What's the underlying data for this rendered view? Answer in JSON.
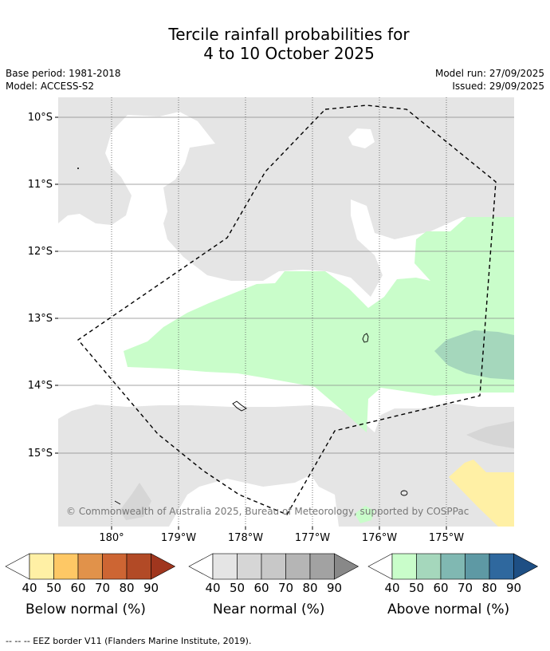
{
  "title": {
    "line1": "Tercile rainfall probabilities for",
    "line2": "4 to 10 October 2025"
  },
  "meta": {
    "base_period": "Base period: 1981-2018",
    "model": "Model: ACCESS-S2",
    "model_run": "Model run: 27/09/2025",
    "issued": "Issued: 29/09/2025"
  },
  "map": {
    "lat_labels": [
      "10°S",
      "11°S",
      "12°S",
      "13°S",
      "14°S",
      "15°S"
    ],
    "lon_labels": [
      "180°",
      "179°W",
      "178°W",
      "177°W",
      "176°W",
      "175°W"
    ],
    "credit": "© Commonwealth of Australia 2025, Bureau of Meteorology, supported by COSPPac"
  },
  "legend": {
    "ticks": [
      "40",
      "50",
      "60",
      "70",
      "80",
      "90"
    ],
    "below": {
      "label": "Below normal (%)",
      "colors": [
        "#ffffff",
        "#fff0a5",
        "#fec865",
        "#e1924a",
        "#cd6533",
        "#b24a26",
        "#a0361e"
      ]
    },
    "near": {
      "label": "Near normal (%)",
      "colors": [
        "#ffffff",
        "#e5e5e5",
        "#d6d6d6",
        "#c8c8c8",
        "#b5b5b5",
        "#a2a2a2",
        "#888888"
      ]
    },
    "above": {
      "label": "Above normal (%)",
      "colors": [
        "#ffffff",
        "#c9fdca",
        "#a5d7bc",
        "#80b8b2",
        "#5e99a4",
        "#2f689e",
        "#1e4f84"
      ]
    }
  },
  "footer": "--  --  -- EEZ border V11 (Flanders Marine Institute, 2019)."
}
